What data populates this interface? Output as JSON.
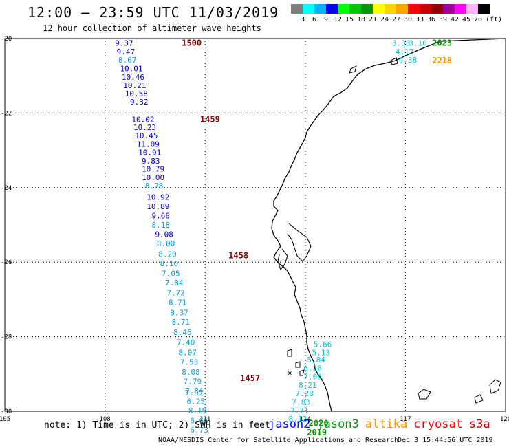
{
  "header": {
    "title": "12:00 – 23:59 UTC 11/03/2019",
    "subtitle": "12 hour collection of altimeter wave heights"
  },
  "colorbar": {
    "unit": "(ft)",
    "ticks": [
      "3",
      "6",
      "9",
      "12",
      "15",
      "18",
      "21",
      "24",
      "27",
      "30",
      "33",
      "36",
      "39",
      "42",
      "45",
      "70"
    ],
    "colors": [
      "#7f7f7f",
      "#00ffff",
      "#00b4ff",
      "#0000ff",
      "#00ff00",
      "#00c800",
      "#009600",
      "#ffff00",
      "#ffd200",
      "#ffa500",
      "#ff0000",
      "#c80000",
      "#960000",
      "#a000a0",
      "#ff00ff",
      "#ffb4ff",
      "#000000"
    ]
  },
  "map": {
    "lon_ticks": [
      "105",
      "108",
      "111",
      "114",
      "117",
      "120"
    ],
    "lat_ticks": [
      "-20",
      "-22",
      "-24",
      "-26",
      "-28",
      "-30"
    ]
  },
  "tracks": [
    {
      "satellite": "jason2",
      "passes": [
        {
          "label": "1500",
          "label_color": "#8b0000",
          "lat": -20.1,
          "lon": 110.3
        },
        {
          "label": "1459",
          "label_color": "#8b0000",
          "lat": -22.15,
          "lon": 110.85
        },
        {
          "label": "1458",
          "label_color": "#8b0000",
          "lat": -25.8,
          "lon": 111.7
        },
        {
          "label": "1457",
          "label_color": "#8b0000",
          "lat": -29.1,
          "lon": 112.05
        }
      ],
      "points": [
        {
          "value": "9.37",
          "lat": -20.12,
          "lon": 108.3,
          "color": "#0000c8"
        },
        {
          "value": "9.47",
          "lat": -20.35,
          "lon": 108.35,
          "color": "#0000c8"
        },
        {
          "value": "8.67",
          "lat": -20.57,
          "lon": 108.4,
          "color": "#00a0dc"
        },
        {
          "value": "10.01",
          "lat": -20.8,
          "lon": 108.45,
          "color": "#0000c8"
        },
        {
          "value": "10.46",
          "lat": -21.03,
          "lon": 108.5,
          "color": "#0000c8"
        },
        {
          "value": "10.21",
          "lat": -21.25,
          "lon": 108.55,
          "color": "#0000c8"
        },
        {
          "value": "10.58",
          "lat": -21.48,
          "lon": 108.6,
          "color": "#0000c8"
        },
        {
          "value": "9.32",
          "lat": -21.7,
          "lon": 108.75,
          "color": "#0000c8"
        },
        {
          "value": "10.02",
          "lat": -22.17,
          "lon": 108.8,
          "color": "#0000c8"
        },
        {
          "value": "10.23",
          "lat": -22.38,
          "lon": 108.85,
          "color": "#0000c8"
        },
        {
          "value": "10.45",
          "lat": -22.6,
          "lon": 108.9,
          "color": "#0000c8"
        },
        {
          "value": "11.09",
          "lat": -22.83,
          "lon": 108.95,
          "color": "#0000c8"
        },
        {
          "value": "10.91",
          "lat": -23.05,
          "lon": 109.0,
          "color": "#0000c8"
        },
        {
          "value": "9.83",
          "lat": -23.28,
          "lon": 109.1,
          "color": "#0000c8"
        },
        {
          "value": "10.79",
          "lat": -23.5,
          "lon": 109.1,
          "color": "#0000c8"
        },
        {
          "value": "10.00",
          "lat": -23.73,
          "lon": 109.1,
          "color": "#0000c8"
        },
        {
          "value": "8.28",
          "lat": -23.95,
          "lon": 109.2,
          "color": "#00a0dc"
        },
        {
          "value": "10.92",
          "lat": -24.25,
          "lon": 109.25,
          "color": "#0000c8"
        },
        {
          "value": "10.89",
          "lat": -24.5,
          "lon": 109.25,
          "color": "#0000c8"
        },
        {
          "value": "9.68",
          "lat": -24.75,
          "lon": 109.4,
          "color": "#0000c8"
        },
        {
          "value": "8.18",
          "lat": -25.0,
          "lon": 109.4,
          "color": "#00a0dc"
        },
        {
          "value": "9.08",
          "lat": -25.25,
          "lon": 109.5,
          "color": "#0000c8"
        },
        {
          "value": "8.00",
          "lat": -25.5,
          "lon": 109.55,
          "color": "#00a0dc"
        },
        {
          "value": "8.20",
          "lat": -25.78,
          "lon": 109.6,
          "color": "#00a0dc"
        },
        {
          "value": "8.10",
          "lat": -26.03,
          "lon": 109.65,
          "color": "#00a0dc"
        },
        {
          "value": "7.05",
          "lat": -26.3,
          "lon": 109.7,
          "color": "#00a0dc"
        },
        {
          "value": "7.84",
          "lat": -26.55,
          "lon": 109.8,
          "color": "#00a0dc"
        },
        {
          "value": "7.72",
          "lat": -26.82,
          "lon": 109.85,
          "color": "#00a0dc"
        },
        {
          "value": "8.71",
          "lat": -27.08,
          "lon": 109.9,
          "color": "#00a0dc"
        },
        {
          "value": "8.37",
          "lat": -27.35,
          "lon": 109.95,
          "color": "#00a0dc"
        },
        {
          "value": "8.71",
          "lat": -27.6,
          "lon": 110.0,
          "color": "#00a0dc"
        },
        {
          "value": "8.46",
          "lat": -27.88,
          "lon": 110.05,
          "color": "#00a0dc"
        },
        {
          "value": "7.40",
          "lat": -28.15,
          "lon": 110.15,
          "color": "#00a0dc"
        },
        {
          "value": "8.07",
          "lat": -28.42,
          "lon": 110.2,
          "color": "#00a0dc"
        },
        {
          "value": "7.53",
          "lat": -28.68,
          "lon": 110.25,
          "color": "#00a0dc"
        },
        {
          "value": "8.08",
          "lat": -28.95,
          "lon": 110.3,
          "color": "#00a0dc"
        },
        {
          "value": "7.79",
          "lat": -29.2,
          "lon": 110.35,
          "color": "#00a0dc"
        },
        {
          "value": "7.84",
          "lat": -29.45,
          "lon": 110.4,
          "color": "#00a0dc"
        },
        {
          "value": "7.97",
          "lat": -29.5,
          "lon": 110.4,
          "color": "#00a0dc"
        },
        {
          "value": "6.25",
          "lat": -29.73,
          "lon": 110.45,
          "color": "#00a0dc"
        },
        {
          "value": "8.19",
          "lat": -29.98,
          "lon": 110.5,
          "color": "#00a0dc"
        },
        {
          "value": "6.65",
          "lat": -30.25,
          "lon": 110.55,
          "color": "#00a0dc"
        },
        {
          "value": "6.73",
          "lat": -30.5,
          "lon": 110.55,
          "color": "#00a0dc"
        }
      ]
    },
    {
      "satellite": "jason3",
      "passes": [
        {
          "label": "2023",
          "label_color": "#009600",
          "lat": -20.1,
          "lon": 117.8
        },
        {
          "label": "2020",
          "label_color": "#009600",
          "lat": -30.3,
          "lon": 114.1
        },
        {
          "label": "2019",
          "label_color": "#009600",
          "lat": -30.55,
          "lon": 114.05
        }
      ],
      "points": [
        {
          "value": "3.33",
          "lat": -20.12,
          "lon": 116.6,
          "color": "#00c8dc"
        },
        {
          "value": "3.10",
          "lat": -20.12,
          "lon": 117.1,
          "color": "#00c8dc"
        },
        {
          "value": "4.17",
          "lat": -20.35,
          "lon": 116.7,
          "color": "#00c8dc"
        },
        {
          "value": "4.38",
          "lat": -20.57,
          "lon": 116.8,
          "color": "#00c8dc"
        },
        {
          "value": "5.66",
          "lat": -28.2,
          "lon": 114.25,
          "color": "#00c8dc"
        },
        {
          "value": "5.13",
          "lat": -28.42,
          "lon": 114.2,
          "color": "#00c8dc"
        },
        {
          "value": "5.84",
          "lat": -28.62,
          "lon": 114.05,
          "color": "#00c8dc"
        },
        {
          "value": "6.26",
          "lat": -28.85,
          "lon": 113.95,
          "color": "#00c8dc"
        },
        {
          "value": "7.06",
          "lat": -29.07,
          "lon": 113.95,
          "color": "#00c8dc"
        },
        {
          "value": "8.21",
          "lat": -29.3,
          "lon": 113.8,
          "color": "#00c8dc"
        },
        {
          "value": "7.28",
          "lat": -29.52,
          "lon": 113.7,
          "color": "#00c8dc"
        },
        {
          "value": "7.83",
          "lat": -29.75,
          "lon": 113.6,
          "color": "#00c8dc"
        },
        {
          "value": "7.71",
          "lat": -29.98,
          "lon": 113.55,
          "color": "#00c8dc"
        },
        {
          "value": "8.12",
          "lat": -30.2,
          "lon": 113.5,
          "color": "#00c8dc"
        }
      ]
    },
    {
      "satellite": "altika",
      "passes": [
        {
          "label": "2218",
          "label_color": "#ff8c00",
          "lat": -20.57,
          "lon": 117.8
        }
      ],
      "points": []
    }
  ],
  "legend": {
    "note": "note: 1) Time is in UTC; 2) SWH is in feet",
    "items": [
      {
        "name": "jason2",
        "color": "#0000ff"
      },
      {
        "name": "jason3",
        "color": "#009600"
      },
      {
        "name": "altika",
        "color": "#ff8c00"
      },
      {
        "name": "cryosat",
        "color": "#ff0000"
      },
      {
        "name": "s3a",
        "color": "#c80000"
      }
    ]
  },
  "footer": {
    "credit": "NOAA/NESDIS Center for Satellite Applications and Research",
    "timestamp": "Dec  3 15:44:56 UTC 2019"
  }
}
